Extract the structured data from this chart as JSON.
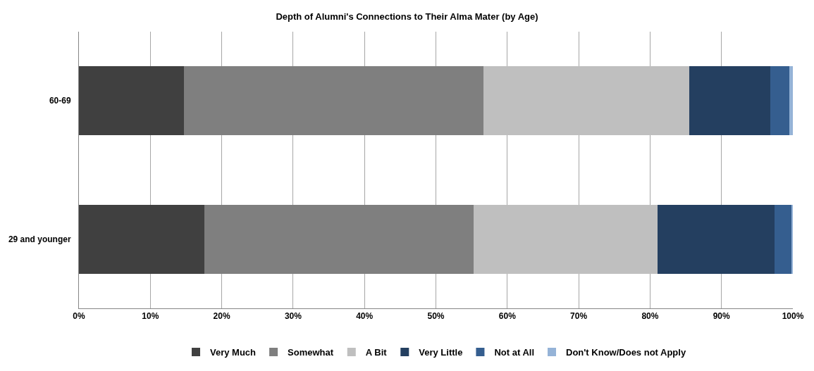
{
  "chart_data": {
    "type": "bar",
    "orientation": "horizontal",
    "stacked": true,
    "title": "Depth of Alumni's Connections to Their Alma Mater (by Age)",
    "categories": [
      "60-69",
      "29 and younger"
    ],
    "series": [
      {
        "name": "Very Much",
        "color": "#404040",
        "values": [
          14.7,
          17.6
        ]
      },
      {
        "name": "Somewhat",
        "color": "#7f7f7f",
        "values": [
          42.0,
          37.7
        ]
      },
      {
        "name": "A Bit",
        "color": "#bfbfbf",
        "values": [
          28.8,
          25.7
        ]
      },
      {
        "name": "Very Little",
        "color": "#243f60",
        "values": [
          11.3,
          16.4
        ]
      },
      {
        "name": "Not at All",
        "color": "#355e8f",
        "values": [
          2.7,
          2.4
        ]
      },
      {
        "name": "Don't Know/Does not Apply",
        "color": "#95b3d7",
        "values": [
          0.5,
          0.2
        ]
      }
    ],
    "xlim": [
      0,
      100
    ],
    "xticks": [
      {
        "value": 0,
        "label": "0%"
      },
      {
        "value": 10,
        "label": "10%"
      },
      {
        "value": 20,
        "label": "20%"
      },
      {
        "value": 30,
        "label": "30%"
      },
      {
        "value": 40,
        "label": "40%"
      },
      {
        "value": 50,
        "label": "50%"
      },
      {
        "value": 60,
        "label": "60%"
      },
      {
        "value": 70,
        "label": "70%"
      },
      {
        "value": 80,
        "label": "80%"
      },
      {
        "value": 90,
        "label": "90%"
      },
      {
        "value": 100,
        "label": "100%"
      }
    ],
    "grid": "x",
    "legend": "bottom"
  }
}
